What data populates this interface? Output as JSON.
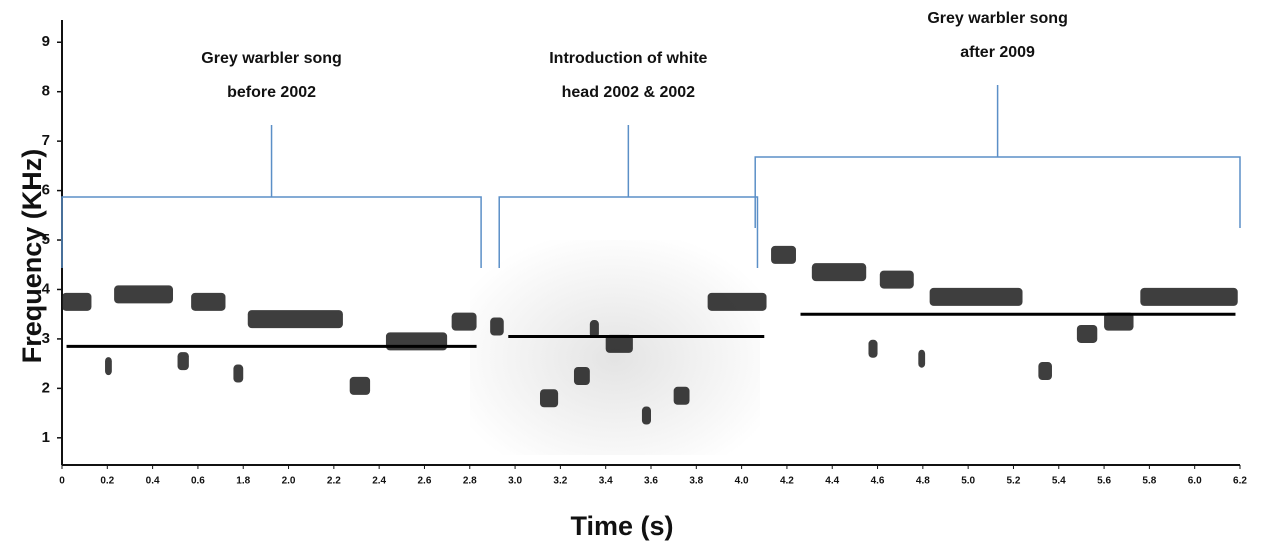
{
  "chart_data": {
    "type": "spectrogram",
    "y_label": "Frequency (KHz)",
    "x_label": "Time (s)",
    "xlim": [
      0,
      6.2
    ],
    "ylim": [
      0.45,
      9.45
    ],
    "yticks": [
      1,
      2,
      3,
      4,
      5,
      6,
      7,
      8,
      9
    ],
    "xticks": [
      0,
      0.2,
      0.4,
      0.6,
      1.8,
      {
        "value": 2,
        "label": "2.0"
      },
      2.2,
      2.4,
      2.6,
      2.8,
      {
        "value": 3,
        "label": "3.0"
      },
      3.2,
      3.4,
      3.6,
      3.8,
      {
        "value": 4,
        "label": "4.0"
      },
      4.2,
      4.4,
      4.6,
      4.8,
      {
        "value": 5,
        "label": "5.0"
      },
      5.2,
      5.4,
      5.6,
      5.8,
      {
        "value": 6,
        "label": "6.0"
      },
      6.2
    ],
    "syllable_color": "#1c1c1c",
    "mean_color": "#000000",
    "bracket_color": "#5b8fc7",
    "syllables": [
      {
        "x": [
          0,
          0.13
        ],
        "y": 3.75
      },
      {
        "x": [
          0.23,
          0.49
        ],
        "y": 3.9
      },
      {
        "x": [
          0.57,
          1.33
        ],
        "y": 3.75
      },
      {
        "x": [
          1.82,
          2.24
        ],
        "y": 3.4
      },
      {
        "x": [
          2.43,
          2.7
        ],
        "y": 2.95
      },
      {
        "x": [
          2.72,
          2.83
        ],
        "y": 3.35
      },
      {
        "x": [
          0.51,
          0.56
        ],
        "y": 2.55
      },
      {
        "x": [
          1.54,
          1.8
        ],
        "y": 2.3
      },
      {
        "x": [
          2.27,
          2.36
        ],
        "y": 2.05
      },
      {
        "x": [
          0.19,
          0.22
        ],
        "y": 2.45
      },
      {
        "x": [
          2.89,
          2.95
        ],
        "y": 3.25
      },
      {
        "x": [
          3.11,
          3.19
        ],
        "y": 1.8
      },
      {
        "x": [
          3.26,
          3.33
        ],
        "y": 2.25
      },
      {
        "x": [
          3.4,
          3.52
        ],
        "y": 2.9
      },
      {
        "x": [
          3.7,
          3.77
        ],
        "y": 1.85
      },
      {
        "x": [
          3.85,
          4.11
        ],
        "y": 3.75
      },
      {
        "x": [
          3.56,
          3.6
        ],
        "y": 1.45
      },
      {
        "x": [
          3.33,
          3.37
        ],
        "y": 3.2
      },
      {
        "x": [
          4.13,
          4.24
        ],
        "y": 4.7
      },
      {
        "x": [
          4.31,
          4.55
        ],
        "y": 4.35
      },
      {
        "x": [
          4.61,
          4.76
        ],
        "y": 4.2
      },
      {
        "x": [
          4.83,
          5.24
        ],
        "y": 3.85
      },
      {
        "x": [
          5.48,
          5.57
        ],
        "y": 3.1
      },
      {
        "x": [
          5.6,
          5.73
        ],
        "y": 3.35
      },
      {
        "x": [
          5.76,
          6.19
        ],
        "y": 3.85
      },
      {
        "x": [
          4.56,
          4.6
        ],
        "y": 2.8
      },
      {
        "x": [
          4.78,
          4.81
        ],
        "y": 2.6
      },
      {
        "x": [
          5.31,
          5.37
        ],
        "y": 2.35
      }
    ],
    "mean_lines": [
      {
        "x": [
          0.02,
          2.83
        ],
        "y": 2.85
      },
      {
        "x": [
          2.97,
          4.1
        ],
        "y": 3.05
      },
      {
        "x": [
          4.26,
          6.18
        ],
        "y": 3.5
      }
    ],
    "annotations": [
      {
        "lines": [
          "Grey warbler song",
          "before 2002"
        ],
        "x": [
          0,
          2.85
        ],
        "y": 5.87
      },
      {
        "lines": [
          "Introduction of white",
          "head 2002 & 2002"
        ],
        "x": [
          2.93,
          4.07
        ],
        "y": 5.87
      },
      {
        "lines": [
          "Grey warbler song",
          "after 2009"
        ],
        "x": [
          4.06,
          6.2
        ],
        "y": 6.68
      }
    ]
  }
}
